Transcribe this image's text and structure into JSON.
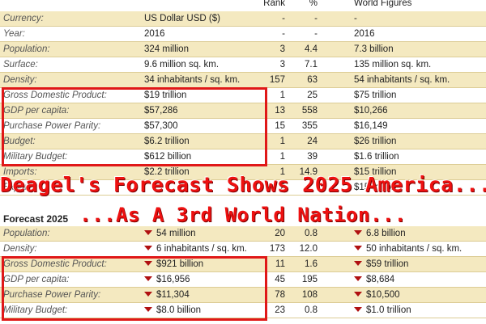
{
  "header": {
    "rank": "Rank",
    "percent": "%",
    "world_figures": "World Figures"
  },
  "current_rows": [
    {
      "label": "Currency:",
      "value": "US Dollar USD ($)",
      "rank": "-",
      "pct": "-",
      "world": "-"
    },
    {
      "label": "Year:",
      "value": "2016",
      "rank": "-",
      "pct": "-",
      "world": "2016"
    },
    {
      "label": "Population:",
      "value": "324 million",
      "rank": "3",
      "pct": "4.4",
      "world": "7.3 billion"
    },
    {
      "label": "Surface:",
      "value": "9.6 million sq. km.",
      "rank": "3",
      "pct": "7.1",
      "world": "135 million sq. km."
    },
    {
      "label": "Density:",
      "value": "34 inhabitants / sq. km.",
      "rank": "157",
      "pct": "63",
      "world": "54 inhabitants / sq. km."
    },
    {
      "label": "Gross Domestic Product:",
      "value": "$19 trillion",
      "rank": "1",
      "pct": "25",
      "world": "$75 trillion"
    },
    {
      "label": "GDP per capita:",
      "value": "$57,286",
      "rank": "13",
      "pct": "558",
      "world": "$10,266"
    },
    {
      "label": "Purchase Power Parity:",
      "value": "$57,300",
      "rank": "15",
      "pct": "355",
      "world": "$16,149"
    },
    {
      "label": "Budget:",
      "value": "$6.2 trillion",
      "rank": "1",
      "pct": "24",
      "world": "$26 trillion"
    },
    {
      "label": "Military Budget:",
      "value": "$612 billion",
      "rank": "1",
      "pct": "39",
      "world": "$1.6 trillion"
    },
    {
      "label": "Imports:",
      "value": "$2.2 trillion",
      "rank": "1",
      "pct": "14.9",
      "world": "$15 trillion"
    },
    {
      "label": "Exports:",
      "value": "",
      "rank": "2",
      "pct": "",
      "world": "$15 trillion"
    }
  ],
  "forecast_title": "Forecast 2025",
  "forecast_rows": [
    {
      "label": "Population:",
      "value": "54 million",
      "rank": "20",
      "pct": "0.8",
      "world": "6.8 billion"
    },
    {
      "label": "Density:",
      "value": "6 inhabitants / sq. km.",
      "rank": "173",
      "pct": "12.0",
      "world": "50 inhabitants / sq. km."
    },
    {
      "label": "Gross Domestic Product:",
      "value": "$921 billion",
      "rank": "11",
      "pct": "1.6",
      "world": "$59 trillion"
    },
    {
      "label": "GDP per capita:",
      "value": "$16,956",
      "rank": "45",
      "pct": "195",
      "world": "$8,684"
    },
    {
      "label": "Purchase Power Parity:",
      "value": "$11,304",
      "rank": "78",
      "pct": "108",
      "world": "$10,500"
    },
    {
      "label": "Military Budget:",
      "value": "$8.0 billion",
      "rank": "23",
      "pct": "0.8",
      "world": "$1.0 trillion"
    }
  ],
  "overlay": {
    "line1": "Deagel's Forecast Shows 2025 America...",
    "line2": "...As A 3rd World Nation..."
  },
  "colors": {
    "row_shaded": "#f4e9c0",
    "highlight_box": "#e01818",
    "overlay_text": "#ee1111",
    "down_arrow": "#b01010"
  },
  "icons": {
    "forecast_value_marker": "down-arrow-icon"
  }
}
